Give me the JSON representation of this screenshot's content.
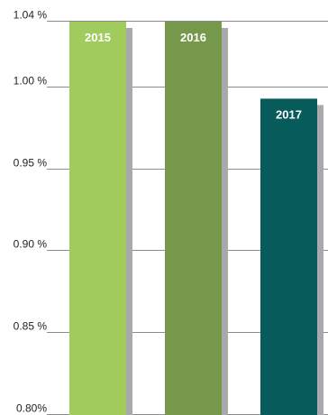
{
  "chart_data": {
    "type": "bar",
    "categories": [
      "2015",
      "2016",
      "2017"
    ],
    "values": [
      1.04,
      1.04,
      0.993
    ],
    "ylim": [
      0.8,
      1.04
    ],
    "yticks": [
      1.04,
      1.0,
      0.95,
      0.9,
      0.85,
      0.8
    ],
    "ytick_labels": [
      "1.04 %",
      "1.00 %",
      "0.95 %",
      "0.90 %",
      "0.85 %",
      "0.80%"
    ],
    "grid": true,
    "colors": [
      "#a2cb5e",
      "#76984b",
      "#075b5a"
    ],
    "shadow_color": "#a7a9ac",
    "title": "",
    "xlabel": "",
    "ylabel": ""
  }
}
